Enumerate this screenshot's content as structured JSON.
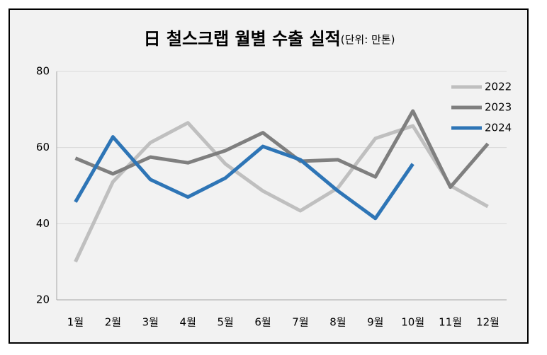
{
  "chart_data": {
    "type": "line",
    "title": "日 철스크랩 월별 수출 실적",
    "subtitle": "(단위: 만톤)",
    "categories": [
      "1월",
      "2월",
      "3월",
      "4월",
      "5월",
      "6월",
      "7월",
      "8월",
      "9월",
      "10월",
      "11월",
      "12월"
    ],
    "series": [
      {
        "name": "2022",
        "color": "#bfbfbf",
        "values": [
          30,
          51,
          61.3,
          66.5,
          55.7,
          48.6,
          43.4,
          49.4,
          62.4,
          65.7,
          50,
          44.5
        ]
      },
      {
        "name": "2023",
        "color": "#7f7f7f",
        "values": [
          57.2,
          53.1,
          57.5,
          56,
          59.2,
          63.9,
          56.4,
          56.8,
          52.3,
          69.6,
          49.6,
          61
        ]
      },
      {
        "name": "2024",
        "color": "#2e75b6",
        "values": [
          45.7,
          62.8,
          51.6,
          47,
          52,
          60.3,
          56.8,
          48.6,
          41.4,
          55.7,
          null,
          null
        ]
      }
    ],
    "ylim": [
      20,
      80
    ],
    "yticks": [
      20,
      40,
      60,
      80
    ],
    "grid": true,
    "legend": "upper right"
  }
}
